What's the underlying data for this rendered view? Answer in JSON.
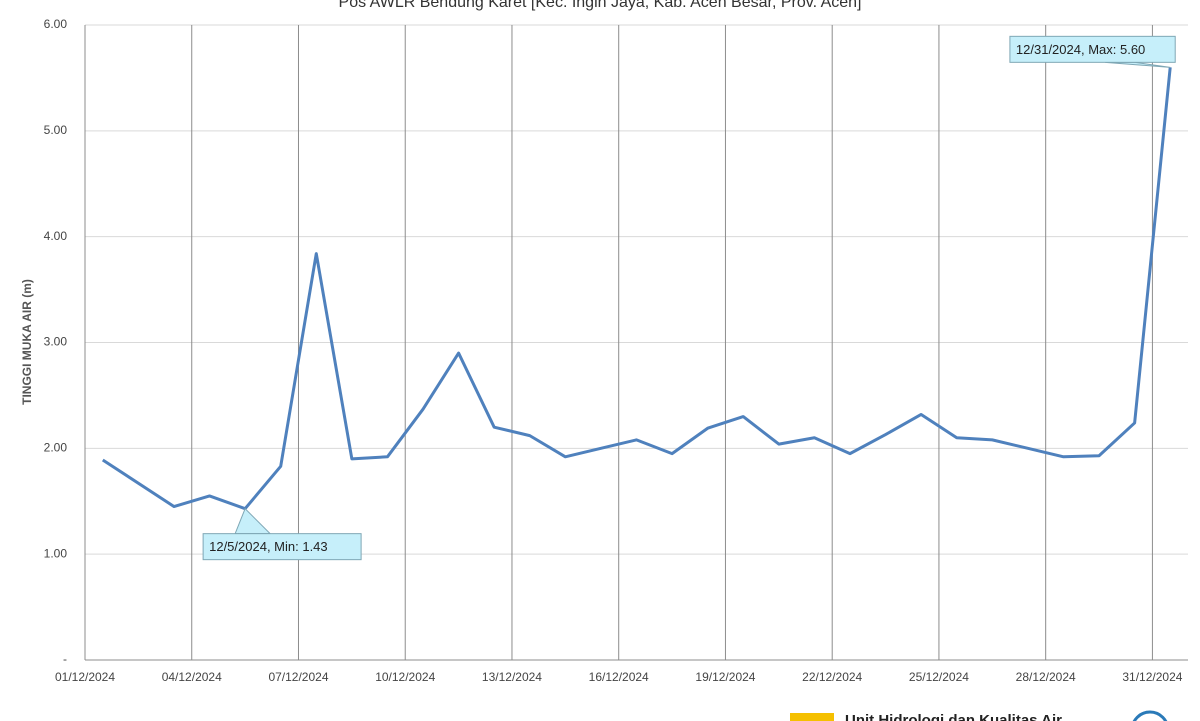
{
  "chart_data": {
    "type": "line",
    "title": "Pos AWLR Bendung Karet [Kec. Ingin Jaya, Kab. Aceh Besar, Prov. Aceh]",
    "y_label": "TINGGI MUKA AIR (m)",
    "x": [
      "01/12/2024",
      "03/12/2024",
      "04/12/2024",
      "05/12/2024",
      "06/12/2024",
      "07/12/2024",
      "08/12/2024",
      "09/12/2024",
      "10/12/2024",
      "11/12/2024",
      "12/12/2024",
      "13/12/2024",
      "14/12/2024",
      "15/12/2024",
      "16/12/2024",
      "17/12/2024",
      "18/12/2024",
      "19/12/2024",
      "20/12/2024",
      "21/12/2024",
      "22/12/2024",
      "23/12/2024",
      "24/12/2024",
      "25/12/2024",
      "26/12/2024",
      "27/12/2024",
      "28/12/2024",
      "29/12/2024",
      "30/12/2024",
      "31/12/2024"
    ],
    "series": [
      {
        "name": "Tinggi Muka Air",
        "color": "#4f81bd",
        "values": [
          1.89,
          1.45,
          1.55,
          1.43,
          1.83,
          3.84,
          1.9,
          1.92,
          2.37,
          2.9,
          2.2,
          2.12,
          1.92,
          2.0,
          2.08,
          1.95,
          2.19,
          2.3,
          2.04,
          2.1,
          1.95,
          2.13,
          2.32,
          2.1,
          2.08,
          2.0,
          1.92,
          1.93,
          2.24,
          5.6
        ]
      }
    ],
    "xlim": [
      "01/12/2024",
      "01/01/2025"
    ],
    "xticks": [
      "01/12/2024",
      "04/12/2024",
      "07/12/2024",
      "10/12/2024",
      "13/12/2024",
      "16/12/2024",
      "19/12/2024",
      "22/12/2024",
      "25/12/2024",
      "28/12/2024",
      "31/12/2024"
    ],
    "ylim": [
      0,
      6
    ],
    "yticks": [
      {
        "value": 0,
        "label": "-"
      },
      {
        "value": 1,
        "label": "1.00"
      },
      {
        "value": 2,
        "label": "2.00"
      },
      {
        "value": 3,
        "label": "3.00"
      },
      {
        "value": 4,
        "label": "4.00"
      },
      {
        "value": 5,
        "label": "5.00"
      },
      {
        "value": 6,
        "label": "6.00"
      }
    ],
    "grid": true,
    "annotations": [
      {
        "text": "12/5/2024, Min: 1.43",
        "point": 3
      },
      {
        "text": "12/31/2024, Max: 5.60",
        "point": 29
      }
    ],
    "footer": "Unit Hidrologi dan Kualitas Air"
  }
}
